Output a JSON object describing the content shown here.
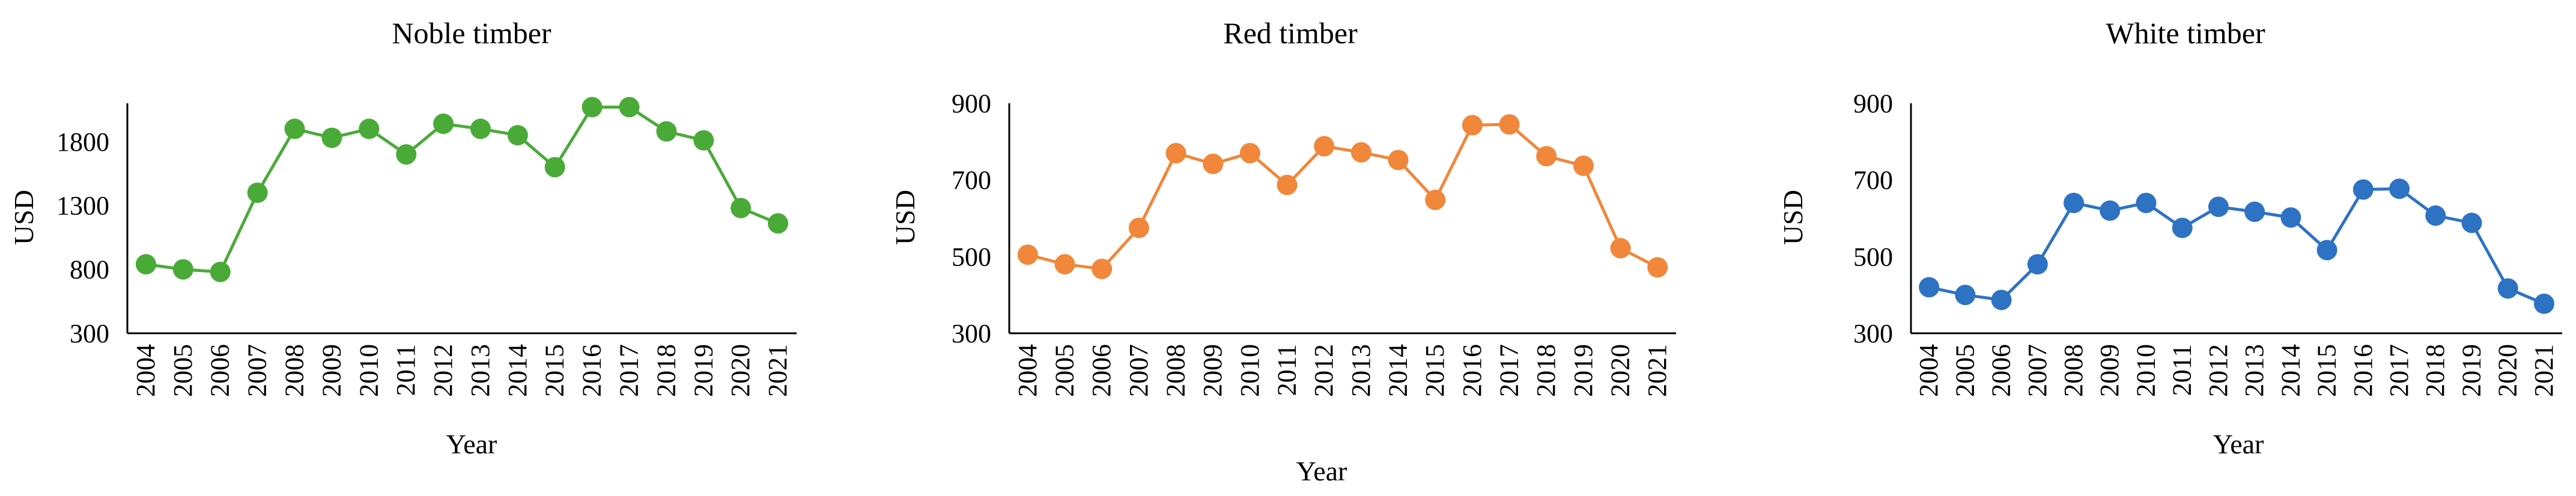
{
  "chart_data": [
    {
      "type": "line",
      "title": "Noble timber",
      "xlabel": "Year",
      "ylabel": "USD",
      "ylim": [
        300,
        2100
      ],
      "yticks": [
        300,
        800,
        1300,
        1800
      ],
      "grid": false,
      "color": "#4aaa38",
      "x": [
        "2004",
        "2005",
        "2006",
        "2007",
        "2008",
        "2009",
        "2010",
        "2011",
        "2012",
        "2013",
        "2014",
        "2015",
        "2016",
        "2017",
        "2018",
        "2019",
        "2020",
        "2021"
      ],
      "values": [
        840,
        800,
        780,
        1400,
        1900,
        1830,
        1900,
        1700,
        1940,
        1900,
        1850,
        1600,
        2070,
        2070,
        1880,
        1810,
        1280,
        1160
      ]
    },
    {
      "type": "line",
      "title": "Red timber",
      "xlabel": "Year",
      "ylabel": "USD",
      "ylim": [
        300,
        900
      ],
      "yticks": [
        300,
        500,
        700,
        900
      ],
      "grid": false,
      "color": "#f0873a",
      "x": [
        "2004",
        "2005",
        "2006",
        "2007",
        "2008",
        "2009",
        "2010",
        "2011",
        "2012",
        "2013",
        "2014",
        "2015",
        "2016",
        "2017",
        "2018",
        "2019",
        "2020",
        "2021"
      ],
      "values": [
        505,
        480,
        468,
        575,
        770,
        742,
        770,
        687,
        788,
        772,
        752,
        648,
        843,
        845,
        762,
        737,
        522,
        472
      ]
    },
    {
      "type": "line",
      "title": "White timber",
      "xlabel": "Year",
      "ylabel": "USD",
      "ylim": [
        300,
        900
      ],
      "yticks": [
        300,
        500,
        700,
        900
      ],
      "grid": false,
      "color": "#2e72c4",
      "x": [
        "2004",
        "2005",
        "2006",
        "2007",
        "2008",
        "2009",
        "2010",
        "2011",
        "2012",
        "2013",
        "2014",
        "2015",
        "2016",
        "2017",
        "2018",
        "2019",
        "2020",
        "2021"
      ],
      "values": [
        420,
        400,
        387,
        480,
        640,
        620,
        640,
        575,
        630,
        617,
        602,
        517,
        675,
        677,
        607,
        588,
        417,
        377
      ]
    }
  ]
}
